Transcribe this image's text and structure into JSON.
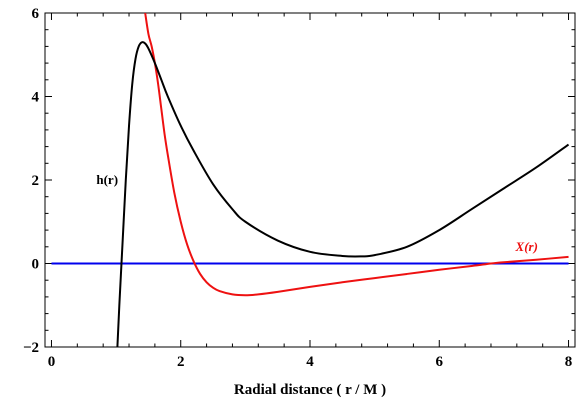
{
  "chart_data": {
    "type": "line",
    "title": "",
    "xlabel": "Radial distance ( r / M )",
    "ylabel": "",
    "xlim": [
      -0.1,
      8.1
    ],
    "ylim": [
      -2,
      6
    ],
    "x_ticks": [
      0,
      2,
      4,
      6,
      8
    ],
    "y_ticks": [
      -2,
      0,
      2,
      4,
      6
    ],
    "x_tick_labels": [
      "0",
      "2",
      "4",
      "6",
      "8"
    ],
    "y_tick_labels": [
      "−2",
      "0",
      "2",
      "4",
      "6"
    ],
    "grid": false,
    "series": [
      {
        "name": "h(r)",
        "color": "#000000",
        "x": [
          1.02,
          1.05,
          1.1,
          1.15,
          1.2,
          1.25,
          1.3,
          1.35,
          1.4,
          1.45,
          1.5,
          1.6,
          1.7,
          1.8,
          2.0,
          2.2,
          2.5,
          2.8,
          3.0,
          3.5,
          4.0,
          4.5,
          4.8,
          5.0,
          5.5,
          6.0,
          6.5,
          7.0,
          7.5,
          8.0
        ],
        "values": [
          -2.0,
          -1.0,
          0.5,
          2.0,
          3.3,
          4.3,
          4.9,
          5.2,
          5.3,
          5.27,
          5.15,
          4.8,
          4.4,
          4.0,
          3.3,
          2.7,
          1.9,
          1.3,
          1.0,
          0.55,
          0.28,
          0.18,
          0.17,
          0.2,
          0.4,
          0.8,
          1.3,
          1.8,
          2.3,
          2.85
        ]
      },
      {
        "name": "X(r)",
        "color": "#ee1111",
        "x": [
          1.45,
          1.5,
          1.55,
          1.6,
          1.65,
          1.7,
          1.75,
          1.8,
          1.9,
          2.0,
          2.1,
          2.2,
          2.3,
          2.4,
          2.5,
          2.6,
          2.8,
          3.0,
          3.2,
          3.5,
          4.0,
          4.5,
          5.0,
          5.5,
          6.0,
          6.5,
          6.8,
          7.0,
          7.5,
          8.0
        ],
        "values": [
          6.0,
          5.5,
          5.2,
          4.8,
          4.3,
          3.7,
          3.1,
          2.6,
          1.7,
          1.0,
          0.45,
          0.05,
          -0.25,
          -0.45,
          -0.58,
          -0.66,
          -0.74,
          -0.76,
          -0.74,
          -0.68,
          -0.56,
          -0.45,
          -0.35,
          -0.25,
          -0.15,
          -0.06,
          0.0,
          0.03,
          0.09,
          0.16
        ]
      },
      {
        "name": "",
        "color": "#0000ee",
        "x": [
          0,
          8
        ],
        "values": [
          0,
          0
        ]
      }
    ],
    "annotations": [
      {
        "text": "h(r)",
        "x": 1.03,
        "y": 2.0,
        "color": "#000000"
      },
      {
        "text": "X(r)",
        "x": 7.18,
        "y": 0.4,
        "color": "#ee1111"
      }
    ]
  }
}
